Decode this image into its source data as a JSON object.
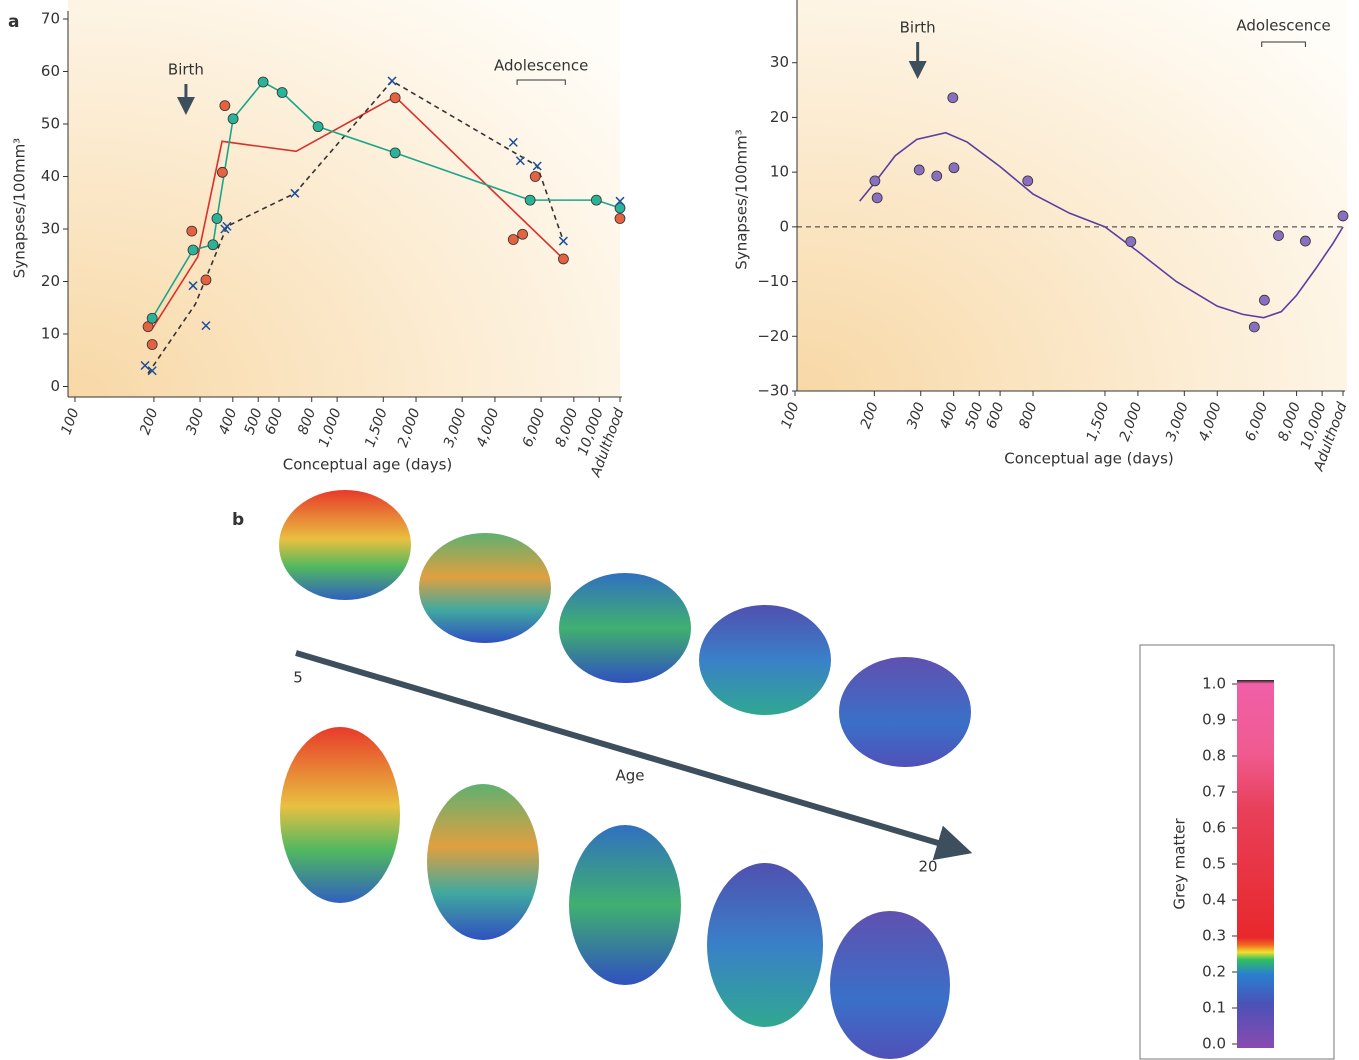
{
  "chart_data": [
    {
      "type": "scatter",
      "x_label": "Conceptual age (days)",
      "y_label": "Synapses/100mm³",
      "log_x": true,
      "xlim": [
        100,
        12000
      ],
      "ylim": [
        -2,
        70
      ],
      "xticks": [
        100,
        200,
        300,
        400,
        500,
        600,
        800,
        {
          "value": 1000,
          "label": "1,000"
        },
        {
          "value": 1500,
          "label": "1,500"
        },
        {
          "value": 2000,
          "label": "2,000"
        },
        {
          "value": 3000,
          "label": "3,000"
        },
        {
          "value": 4000,
          "label": "4,000"
        },
        {
          "value": 6000,
          "label": "6,000"
        },
        {
          "value": 8000,
          "label": "8,000"
        },
        {
          "value": 10000,
          "label": "10,000"
        },
        {
          "value": 12000,
          "label": "Adulthood"
        }
      ],
      "yticks": [
        0,
        10,
        20,
        30,
        40,
        50,
        60,
        70
      ],
      "series": [
        {
          "mode": "line",
          "color": "#d9302a",
          "x": [
            197,
            294,
            364,
            698,
            1665,
            7300
          ],
          "values": [
            11,
            24.7,
            46.7,
            44.8,
            55.2,
            24.3
          ]
        },
        {
          "mode": "line",
          "color": "#333333",
          "dash": true,
          "x": [
            190,
            288,
            380,
            690,
            1620,
            5800,
            7300
          ],
          "values": [
            2.5,
            15.7,
            30.5,
            36.8,
            58.2,
            42,
            27.7
          ]
        },
        {
          "mode": "line",
          "color": "#1aa68a",
          "x": [
            197,
            282,
            336,
            348,
            401,
            522,
            617,
            846,
            1665,
            5450,
            9750,
            12000
          ],
          "values": [
            13,
            26,
            27,
            32,
            51,
            58,
            56,
            49.5,
            44.5,
            35.5,
            35.5,
            34
          ]
        },
        {
          "mode": "markers",
          "marker": "circle",
          "color": "#e4623f",
          "x": [
            190,
            197,
            279,
            316,
            365,
            373,
            1665,
            4700,
            5100,
            5700,
            7300,
            12000
          ],
          "values": [
            11.4,
            8,
            29.6,
            20.3,
            40.8,
            53.5,
            55,
            28,
            29,
            40,
            24.3,
            32
          ]
        },
        {
          "mode": "markers",
          "marker": "circle",
          "color": "#2bb39a",
          "x": [
            197,
            282,
            336,
            348,
            401,
            522,
            617,
            846,
            1665,
            5450,
            9750,
            12000
          ],
          "values": [
            13,
            26,
            27,
            32,
            51,
            58,
            56,
            49.5,
            44.5,
            35.5,
            35.5,
            34
          ]
        },
        {
          "mode": "markers",
          "marker": "x",
          "color": "#1a4f9c",
          "x": [
            185,
            197,
            282,
            316,
            373,
            380,
            690,
            1620,
            4700,
            5000,
            5800,
            7300,
            12000
          ],
          "values": [
            4,
            3,
            19.2,
            11.6,
            30,
            30.5,
            36.8,
            58.2,
            46.5,
            43,
            42,
            27.7,
            35.3
          ]
        }
      ],
      "annotations": {
        "birth": {
          "text": "Birth",
          "x": 265
        },
        "adolescence": {
          "text": "Adolescence",
          "x_range": [
            4860,
            7420
          ]
        }
      }
    },
    {
      "type": "scatter",
      "x_label": "Conceptual age (days)",
      "y_label": "Synapses/100mm³",
      "log_x": true,
      "zero_line": true,
      "xlim": [
        100,
        12000
      ],
      "ylim": [
        -30,
        40
      ],
      "xticks": [
        100,
        200,
        300,
        400,
        500,
        600,
        800,
        {
          "value": 1500,
          "label": "1,500"
        },
        {
          "value": 2000,
          "label": "2,000"
        },
        {
          "value": 3000,
          "label": "3,000"
        },
        {
          "value": 4000,
          "label": "4,000"
        },
        {
          "value": 6000,
          "label": "6,000"
        },
        {
          "value": 8000,
          "label": "8,000"
        },
        {
          "value": 10000,
          "label": "10,000"
        },
        {
          "value": 12000,
          "label": "Adulthood"
        }
      ],
      "yticks": [
        {
          "value": -30,
          "label": "−30"
        },
        {
          "value": -20,
          "label": "−20"
        },
        {
          "value": -10,
          "label": "−10"
        },
        0,
        10,
        20,
        30
      ],
      "series": [
        {
          "mode": "line",
          "color": "#5a3fa0",
          "x": [
            176,
            200,
            240,
            290,
            373,
            450,
            600,
            800,
            1100,
            1500,
            2000,
            2800,
            4000,
            5000,
            6000,
            7000,
            8000,
            9500,
            11000,
            12000
          ],
          "values": [
            4.7,
            8,
            13,
            16,
            17.2,
            15.5,
            11,
            6,
            2.5,
            0,
            -4.5,
            -10,
            -14.5,
            -16,
            -16.6,
            -15.5,
            -12.5,
            -7.5,
            -3,
            0
          ]
        },
        {
          "mode": "markers",
          "marker": "circle",
          "color": "#8a6fc0",
          "x": [
            201,
            205,
            296,
            345,
            397,
            401,
            764,
            1880,
            5530,
            6040,
            6830,
            8640,
            12000
          ],
          "values": [
            8.4,
            5.3,
            10.4,
            9.3,
            23.6,
            10.8,
            8.4,
            -2.7,
            -18.3,
            -13.4,
            -1.6,
            -2.6,
            2
          ]
        }
      ],
      "annotations": {
        "birth": {
          "text": "Birth",
          "x": 292
        },
        "adolescence": {
          "text": "Adolescence",
          "x_range": [
            5900,
            8640
          ]
        }
      }
    }
  ],
  "panel_labels": [
    "a",
    "b"
  ],
  "figure_b": {
    "age_start": "5",
    "age_label": "Age",
    "age_end": "20",
    "colorbar": {
      "label": "Grey matter",
      "lim": [
        0,
        1
      ],
      "ticks": [
        {
          "value": 0,
          "label": "0.0"
        },
        0.1,
        0.2,
        0.3,
        0.4,
        0.5,
        0.6,
        0.7,
        0.8,
        0.9,
        {
          "value": 1,
          "label": "1.0"
        }
      ]
    }
  }
}
